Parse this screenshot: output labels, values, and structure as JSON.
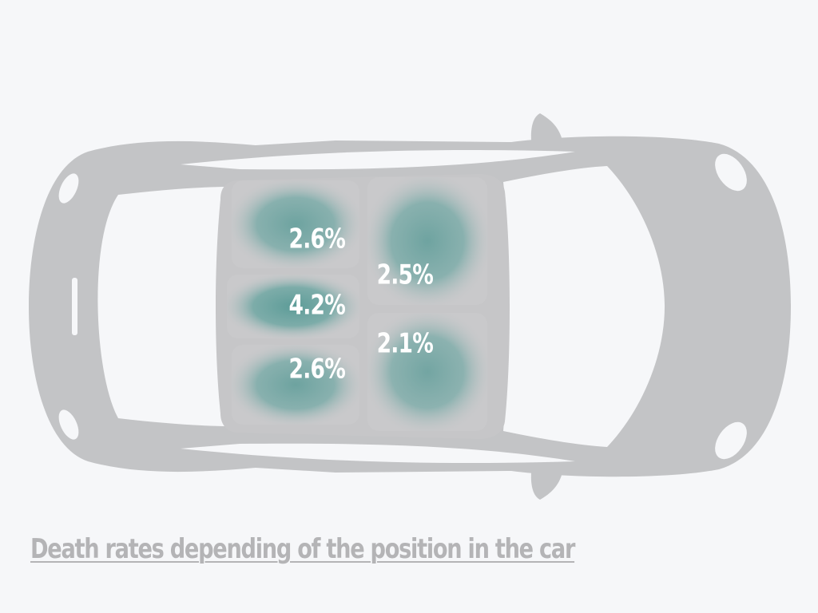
{
  "caption": "Death rates depending of the position in the car",
  "colors": {
    "background": "#f6f7f9",
    "car_body": "#c3c4c6",
    "window_glass": "#f6f7f9",
    "seat_base": "#c9c9cb",
    "heat_color": "#5d9c98",
    "label_color": "#ffffff",
    "caption_color": "#b4b4b6"
  },
  "chart_data": {
    "type": "heatmap",
    "title": "Death rates depending of the position in the car",
    "unit": "%",
    "cells": [
      {
        "row": "rear",
        "col": "left",
        "value": 2.6,
        "label": "2.6%"
      },
      {
        "row": "rear",
        "col": "middle",
        "value": 4.2,
        "label": "4.2%"
      },
      {
        "row": "rear",
        "col": "right",
        "value": 2.6,
        "label": "2.6%"
      },
      {
        "row": "front",
        "col": "left",
        "value": 2.5,
        "label": "2.5%"
      },
      {
        "row": "front",
        "col": "right",
        "value": 2.1,
        "label": "2.1%"
      }
    ]
  }
}
